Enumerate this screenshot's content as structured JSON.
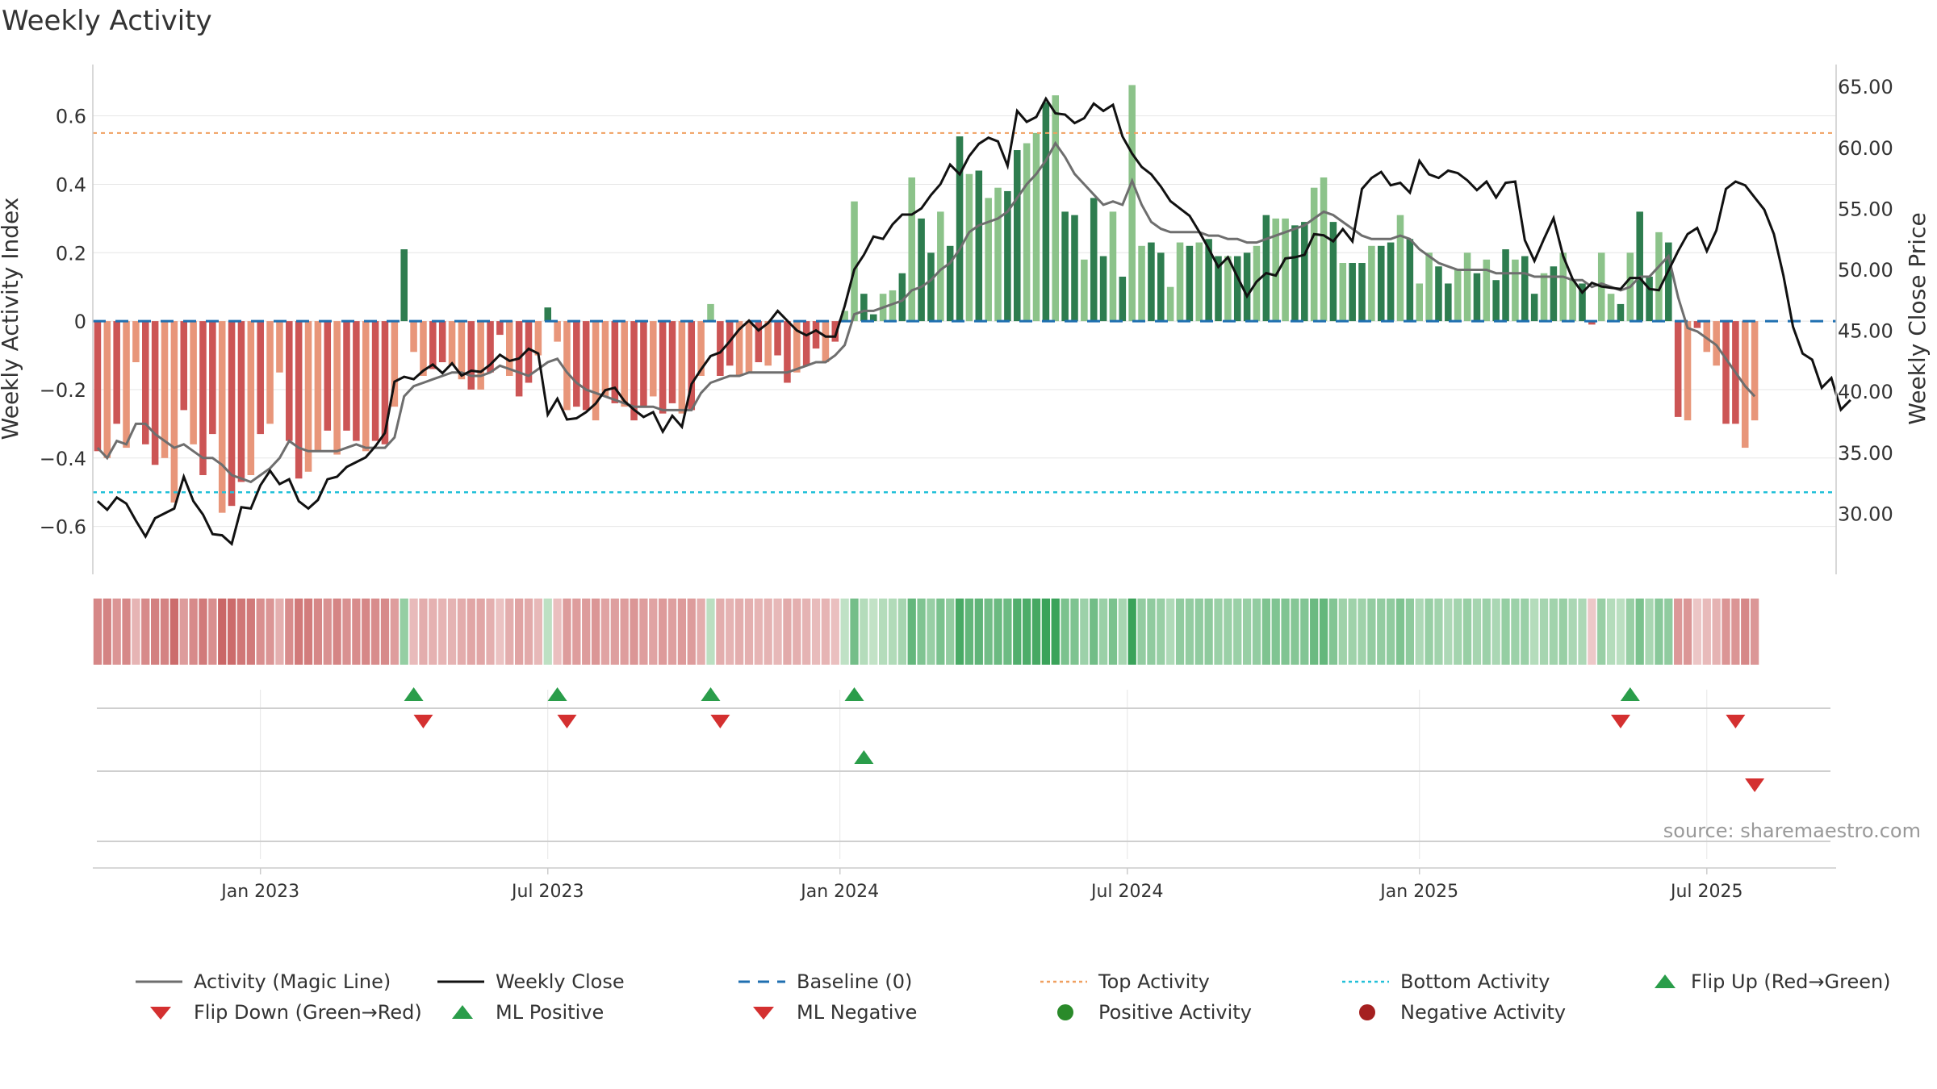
{
  "chart_data": {
    "type": "bar",
    "title": "Weekly Activity",
    "ylabel_left": "Weekly Activity Index",
    "ylabel_right": "Weekly Close Price",
    "source": "source: sharemaestro.com",
    "ylim_left": [
      -0.74,
      0.75
    ],
    "ylim_right": [
      25.0,
      66.8
    ],
    "yticks_left": [
      "0.6",
      "0.4",
      "0.2",
      "0",
      "−0.2",
      "−0.4",
      "−0.6"
    ],
    "yticks_left_values": [
      0.6,
      0.4,
      0.2,
      0,
      -0.2,
      -0.4,
      -0.6
    ],
    "yticks_right": [
      "65.00",
      "60.00",
      "55.00",
      "50.00",
      "45.00",
      "40.00",
      "35.00",
      "30.00"
    ],
    "yticks_right_values": [
      65,
      60,
      55,
      50,
      45,
      40,
      35,
      30
    ],
    "xticks": [
      "Jan 2023",
      "Jul 2023",
      "Jan 2024",
      "Jul 2024",
      "Jan 2025",
      "Jul 2025"
    ],
    "xticks_week_index": [
      17,
      47,
      77.5,
      107.5,
      138,
      168
    ],
    "top_activity": 0.55,
    "bottom_activity": -0.5,
    "baseline": 0,
    "weeks": 182,
    "activity": [
      -0.38,
      -0.4,
      -0.3,
      -0.37,
      -0.12,
      -0.36,
      -0.42,
      -0.4,
      -0.53,
      -0.26,
      -0.36,
      -0.45,
      -0.33,
      -0.56,
      -0.54,
      -0.47,
      -0.45,
      -0.33,
      -0.3,
      -0.15,
      -0.35,
      -0.46,
      -0.44,
      -0.38,
      -0.32,
      -0.39,
      -0.32,
      -0.35,
      -0.38,
      -0.35,
      -0.36,
      -0.25,
      0.21,
      -0.09,
      -0.16,
      -0.14,
      -0.12,
      -0.13,
      -0.17,
      -0.2,
      -0.2,
      -0.15,
      -0.04,
      -0.16,
      -0.22,
      -0.18,
      -0.1,
      0.04,
      -0.06,
      -0.26,
      -0.25,
      -0.26,
      -0.29,
      -0.22,
      -0.24,
      -0.25,
      -0.29,
      -0.25,
      -0.22,
      -0.27,
      -0.24,
      -0.27,
      -0.26,
      -0.16,
      0.05,
      -0.16,
      -0.13,
      -0.16,
      -0.15,
      -0.12,
      -0.13,
      -0.1,
      -0.18,
      -0.15,
      -0.13,
      -0.08,
      -0.12,
      -0.06,
      0.03,
      0.35,
      0.08,
      0.02,
      0.08,
      0.09,
      0.14,
      0.42,
      0.3,
      0.2,
      0.32,
      0.22,
      0.54,
      0.43,
      0.44,
      0.36,
      0.39,
      0.38,
      0.5,
      0.52,
      0.55,
      0.64,
      0.66,
      0.32,
      0.31,
      0.18,
      0.36,
      0.19,
      0.32,
      0.13,
      0.69,
      0.22,
      0.23,
      0.2,
      0.1,
      0.23,
      0.22,
      0.23,
      0.24,
      0.19,
      0.19,
      0.19,
      0.2,
      0.22,
      0.31,
      0.3,
      0.3,
      0.28,
      0.29,
      0.39,
      0.42,
      0.29,
      0.17,
      0.17,
      0.17,
      0.22,
      0.22,
      0.23,
      0.31,
      0.24,
      0.11,
      0.2,
      0.16,
      0.11,
      0.15,
      0.2,
      0.14,
      0.18,
      0.12,
      0.21,
      0.18,
      0.19,
      0.08,
      0.14,
      0.16,
      0.2,
      0.12,
      0.11,
      -0.01,
      0.2,
      0.08,
      0.05,
      0.2,
      0.32,
      0.13,
      0.26,
      0.23,
      -0.28,
      -0.29,
      -0.02,
      -0.09,
      -0.13,
      -0.3,
      -0.3,
      -0.37,
      -0.29
    ],
    "magic_line": [
      -0.37,
      -0.4,
      -0.35,
      -0.36,
      -0.3,
      -0.3,
      -0.33,
      -0.35,
      -0.37,
      -0.36,
      -0.38,
      -0.4,
      -0.4,
      -0.42,
      -0.45,
      -0.46,
      -0.47,
      -0.45,
      -0.43,
      -0.4,
      -0.35,
      -0.37,
      -0.38,
      -0.38,
      -0.38,
      -0.38,
      -0.37,
      -0.36,
      -0.37,
      -0.37,
      -0.37,
      -0.34,
      -0.22,
      -0.19,
      -0.18,
      -0.17,
      -0.16,
      -0.15,
      -0.15,
      -0.16,
      -0.16,
      -0.15,
      -0.13,
      -0.14,
      -0.15,
      -0.16,
      -0.14,
      -0.12,
      -0.11,
      -0.15,
      -0.18,
      -0.2,
      -0.21,
      -0.22,
      -0.23,
      -0.24,
      -0.25,
      -0.25,
      -0.25,
      -0.26,
      -0.26,
      -0.26,
      -0.26,
      -0.21,
      -0.18,
      -0.17,
      -0.16,
      -0.16,
      -0.15,
      -0.15,
      -0.15,
      -0.15,
      -0.15,
      -0.14,
      -0.13,
      -0.12,
      -0.12,
      -0.1,
      -0.07,
      0.02,
      0.03,
      0.03,
      0.04,
      0.05,
      0.06,
      0.09,
      0.1,
      0.12,
      0.15,
      0.17,
      0.21,
      0.26,
      0.28,
      0.29,
      0.3,
      0.32,
      0.36,
      0.4,
      0.43,
      0.47,
      0.52,
      0.48,
      0.43,
      0.4,
      0.37,
      0.34,
      0.35,
      0.34,
      0.41,
      0.34,
      0.29,
      0.27,
      0.26,
      0.26,
      0.26,
      0.26,
      0.25,
      0.25,
      0.24,
      0.24,
      0.23,
      0.23,
      0.24,
      0.25,
      0.26,
      0.27,
      0.28,
      0.3,
      0.32,
      0.31,
      0.29,
      0.27,
      0.25,
      0.24,
      0.24,
      0.24,
      0.25,
      0.24,
      0.21,
      0.19,
      0.17,
      0.16,
      0.15,
      0.15,
      0.15,
      0.15,
      0.14,
      0.14,
      0.14,
      0.14,
      0.13,
      0.13,
      0.13,
      0.13,
      0.12,
      0.12,
      0.1,
      0.11,
      0.1,
      0.09,
      0.1,
      0.13,
      0.13,
      0.16,
      0.19,
      0.07,
      -0.02,
      -0.03,
      -0.05,
      -0.07,
      -0.11,
      -0.15,
      -0.19,
      -0.22
    ],
    "weekly_close": [
      31,
      30.3,
      31.3,
      30.8,
      29.4,
      28.1,
      29.6,
      30,
      30.4,
      33,
      31,
      29.9,
      28.3,
      28.2,
      27.5,
      30.5,
      30.4,
      32.3,
      33.5,
      32.4,
      32.8,
      31,
      30.4,
      31.1,
      32.8,
      33,
      33.8,
      34.2,
      34.6,
      35.5,
      36.6,
      40.8,
      41.2,
      41,
      41.7,
      42.2,
      41.5,
      42.3,
      41.3,
      41.7,
      41.6,
      42.2,
      43,
      42.5,
      42.7,
      43.5,
      43.1,
      38.1,
      39.4,
      37.7,
      37.8,
      38.3,
      39,
      40.1,
      40.3,
      39.2,
      38.5,
      37.9,
      38.3,
      36.7,
      38,
      37.1,
      40.6,
      41.8,
      42.9,
      43.2,
      44.1,
      45.1,
      45.8,
      45,
      45.6,
      46.6,
      45.8,
      45,
      44.6,
      45,
      44.5,
      44.5,
      47,
      50,
      51.2,
      52.7,
      52.5,
      53.7,
      54.5,
      54.5,
      55,
      56.1,
      57,
      58.6,
      57.8,
      59.3,
      60.3,
      60.8,
      60.5,
      58.5,
      63,
      62.1,
      62.5,
      64,
      62.8,
      62.7,
      62,
      62.4,
      63.6,
      63,
      63.5,
      60.9,
      59.5,
      58.4,
      57.8,
      56.8,
      55.6,
      55,
      54.4,
      53.1,
      51.7,
      50.2,
      51,
      49.4,
      47.8,
      49,
      49.7,
      49.5,
      50.9,
      51,
      51.2,
      52.9,
      52.8,
      52.3,
      53.3,
      52.3,
      56.6,
      57.5,
      58,
      56.9,
      57.1,
      56.3,
      58.9,
      57.8,
      57.5,
      58.1,
      57.9,
      57.3,
      56.5,
      57.2,
      55.9,
      57.1,
      57.2,
      52.4,
      50.7,
      52.5,
      54.2,
      51.1,
      49.2,
      48.1,
      48.9,
      48.6,
      48.5,
      48.4,
      49.3,
      49.3,
      48.4,
      48.3,
      49.9,
      51.5,
      52.9,
      53.4,
      51.5,
      53.2,
      56.6,
      57.2,
      56.9,
      55.9,
      54.9,
      52.9,
      49.5,
      45.3,
      43.1,
      42.6,
      40.3,
      41.1,
      38.5,
      39.3
    ],
    "flip_up": [
      33,
      48,
      64,
      79,
      160
    ],
    "flip_down": [
      34,
      49,
      65,
      159,
      171
    ],
    "ml_positive": [
      80
    ],
    "ml_negative": [
      173
    ],
    "legend": [
      "Activity (Magic Line)",
      "Weekly Close",
      "Baseline (0)",
      "Top Activity",
      "Bottom Activity",
      "Flip Up (Red→Green)",
      "Flip Down (Green→Red)",
      "ML Positive",
      "ML Negative",
      "Positive Activity",
      "Negative Activity"
    ],
    "colors": {
      "pos_dark": "#2e7d4f",
      "pos_light": "#8cc38a",
      "neg_dark": "#cc5555",
      "neg_light": "#e8967a",
      "magic": "#6e6e6e",
      "close": "#111111",
      "baseline": "#1f6fb0",
      "top": "#f0a060",
      "bottom": "#22c0d8",
      "up": "#2a9d4a",
      "down": "#d43030",
      "pos_dot": "#2a8a2a",
      "neg_dot": "#a52020",
      "grid": "#e6e6e6",
      "axis": "#cccccc"
    }
  }
}
